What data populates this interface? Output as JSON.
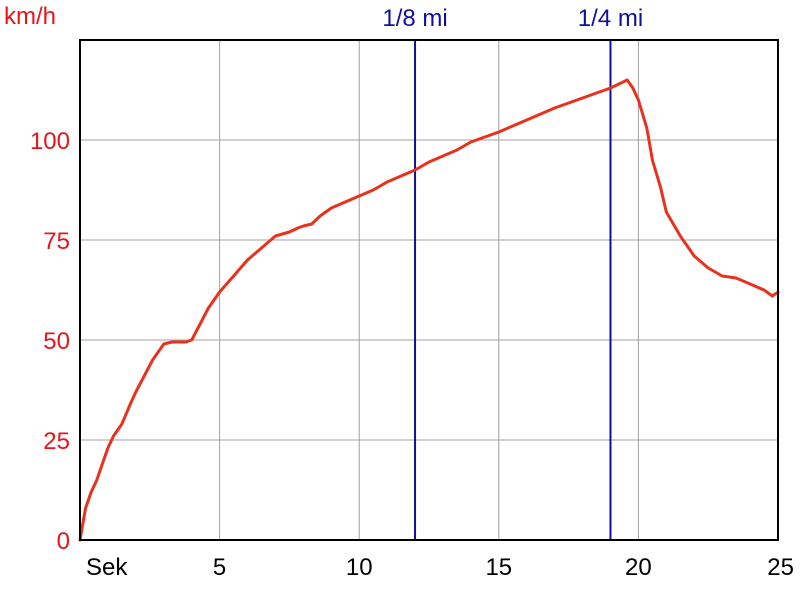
{
  "chart_data": {
    "type": "line",
    "ylabel": "km/h",
    "xlabel": "Sek",
    "xlim": [
      0,
      25
    ],
    "ylim": [
      0,
      125
    ],
    "xticks": [
      5,
      10,
      15,
      20,
      25
    ],
    "yticks": [
      0,
      25,
      50,
      75,
      100
    ],
    "grid": true,
    "colors": {
      "line": "#e8321e",
      "axis_label": "#e8141a",
      "marker": "#10109a",
      "grid": "#a0a0a0",
      "frame": "#000000"
    },
    "markers": [
      {
        "label": "1/8 mi",
        "x": 12.0
      },
      {
        "label": "1/4 mi",
        "x": 19.0
      }
    ],
    "series": [
      {
        "x": [
          0.0,
          0.1,
          0.2,
          0.4,
          0.6,
          0.8,
          1.0,
          1.2,
          1.5,
          1.8,
          2.0,
          2.3,
          2.6,
          3.0,
          3.3,
          3.6,
          3.8,
          4.0,
          4.3,
          4.6,
          5.0,
          5.5,
          6.0,
          6.5,
          7.0,
          7.5,
          7.8,
          8.0,
          8.3,
          8.6,
          9.0,
          9.5,
          10.0,
          10.5,
          11.0,
          11.5,
          12.0,
          12.5,
          13.0,
          13.5,
          14.0,
          15.0,
          16.0,
          17.0,
          18.0,
          19.0,
          19.3,
          19.6,
          19.8,
          20.0,
          20.3,
          20.5,
          20.8,
          21.0,
          21.5,
          22.0,
          22.5,
          23.0,
          23.5,
          24.0,
          24.5,
          24.8,
          25.0
        ],
        "y": [
          0,
          4,
          8,
          12,
          15,
          19,
          23,
          26,
          29,
          34,
          37,
          41,
          45,
          49,
          49.5,
          49.5,
          49.5,
          50,
          54,
          58,
          62,
          66,
          70,
          73,
          76,
          77,
          78,
          78.5,
          79,
          81,
          83,
          84.5,
          86,
          87.5,
          89.5,
          91,
          92.5,
          94.5,
          96,
          97.5,
          99.5,
          102,
          105,
          108,
          110.5,
          113,
          114,
          115,
          113,
          110,
          103,
          95,
          88,
          82,
          76,
          71,
          68,
          66,
          65.5,
          64,
          62.5,
          61,
          62
        ]
      }
    ]
  }
}
